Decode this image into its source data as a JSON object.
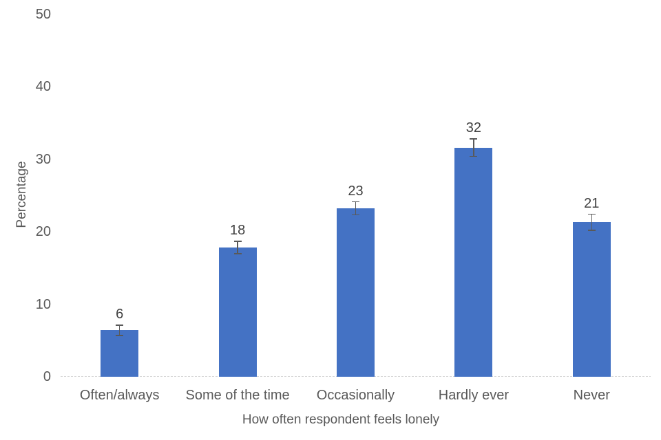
{
  "chart_data": {
    "type": "bar",
    "title": "",
    "categories": [
      "Often/always",
      "Some of the time",
      "Occasionally",
      "Hardly ever",
      "Never"
    ],
    "values": [
      6.4,
      17.8,
      23.2,
      31.6,
      21.3
    ],
    "data_labels": [
      "6",
      "18",
      "23",
      "32",
      "21"
    ],
    "errors": [
      0.7,
      0.85,
      0.9,
      1.2,
      1.1
    ],
    "xlabel": "How often respondent feels lonely",
    "ylabel": "Percentage",
    "ylim": [
      0,
      50
    ],
    "yticks": [
      "0",
      "10",
      "20",
      "30",
      "40",
      "50"
    ],
    "grid": "off",
    "legend": "none",
    "colors": {
      "bar": "#4472C4",
      "error_bar": "#595959",
      "axis_text": "#595959",
      "data_label": "#404040",
      "axis_line": "#D2D2D2",
      "background": "#FFFFFF"
    }
  }
}
